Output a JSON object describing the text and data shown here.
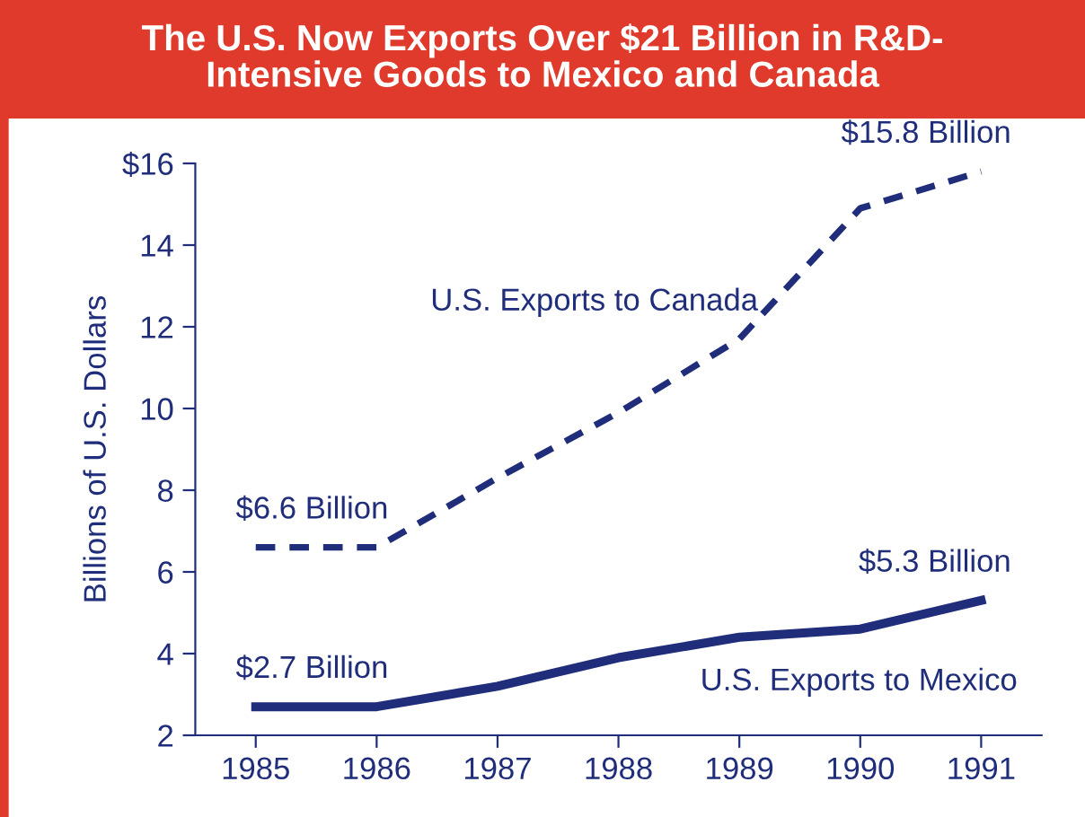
{
  "chart_data": {
    "type": "line",
    "title": "The U.S. Now Exports Over $21 Billion in R&D-\nIntensive Goods to Mexico and Canada",
    "ylabel": "Billions of U.S. Dollars",
    "x": [
      1985,
      1986,
      1987,
      1988,
      1989,
      1990,
      1991
    ],
    "series": [
      {
        "name": "U.S. Exports to Canada",
        "color": "#1f2d7a",
        "line_style": "dashed",
        "values": [
          6.6,
          6.6,
          8.3,
          9.9,
          11.7,
          14.9,
          15.8
        ]
      },
      {
        "name": "U.S. Exports to Mexico",
        "color": "#1f2d7a",
        "line_style": "solid",
        "values": [
          2.7,
          2.7,
          3.2,
          3.9,
          4.4,
          4.6,
          5.3
        ]
      }
    ],
    "xlim": [
      1984.5,
      1991.5
    ],
    "xticks": [
      1985,
      1986,
      1987,
      1988,
      1989,
      1990,
      1991
    ],
    "ylim": [
      2,
      16
    ],
    "yticks": [
      2,
      4,
      6,
      8,
      10,
      12,
      14,
      {
        "value": 16,
        "label": "$16"
      }
    ],
    "annotations": [
      "$6.6 Billion",
      "$15.8 Billion",
      "$5.3 Billion",
      "$2.7 Billion"
    ],
    "grid": false,
    "legend": false,
    "marker": "none"
  }
}
